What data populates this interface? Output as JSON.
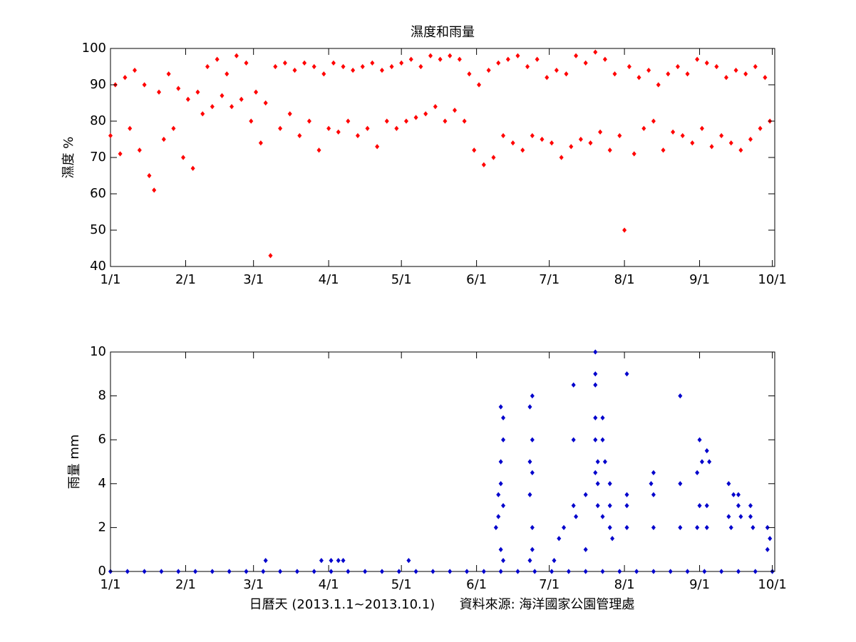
{
  "chart_data": [
    {
      "type": "scatter",
      "title": "濕度和雨量",
      "ylabel": "濕度 %",
      "color": "#ff0000",
      "xlim": [
        0,
        274
      ],
      "ylim": [
        40,
        100
      ],
      "xticks": [
        {
          "value": 0,
          "label": "1/1"
        },
        {
          "value": 31,
          "label": "2/1"
        },
        {
          "value": 59,
          "label": "3/1"
        },
        {
          "value": 90,
          "label": "4/1"
        },
        {
          "value": 120,
          "label": "5/1"
        },
        {
          "value": 151,
          "label": "6/1"
        },
        {
          "value": 181,
          "label": "7/1"
        },
        {
          "value": 212,
          "label": "8/1"
        },
        {
          "value": 243,
          "label": "9/1"
        },
        {
          "value": 273,
          "label": "10/1"
        }
      ],
      "yticks": [
        40,
        50,
        60,
        70,
        80,
        90,
        100
      ],
      "x": [
        0,
        2,
        4,
        6,
        8,
        10,
        12,
        14,
        16,
        18,
        20,
        22,
        24,
        26,
        28,
        30,
        32,
        34,
        36,
        38,
        40,
        42,
        44,
        46,
        48,
        50,
        52,
        54,
        56,
        58,
        60,
        62,
        64,
        66,
        68,
        70,
        72,
        74,
        76,
        78,
        80,
        82,
        84,
        86,
        88,
        90,
        92,
        94,
        96,
        98,
        100,
        102,
        104,
        106,
        108,
        110,
        112,
        114,
        116,
        118,
        120,
        122,
        124,
        126,
        128,
        130,
        132,
        134,
        136,
        138,
        140,
        142,
        144,
        146,
        148,
        150,
        152,
        154,
        156,
        158,
        160,
        162,
        164,
        166,
        168,
        170,
        172,
        174,
        176,
        178,
        180,
        182,
        184,
        186,
        188,
        190,
        192,
        194,
        196,
        198,
        200,
        202,
        204,
        206,
        208,
        210,
        212,
        214,
        216,
        218,
        220,
        222,
        224,
        226,
        228,
        230,
        232,
        234,
        236,
        238,
        240,
        242,
        244,
        246,
        248,
        250,
        252,
        254,
        256,
        258,
        260,
        262,
        264,
        266,
        268,
        270,
        272
      ],
      "values": [
        76,
        90,
        71,
        92,
        78,
        94,
        72,
        90,
        65,
        61,
        88,
        75,
        93,
        78,
        89,
        70,
        86,
        67,
        88,
        82,
        95,
        84,
        97,
        87,
        93,
        84,
        98,
        86,
        96,
        80,
        88,
        74,
        85,
        43,
        95,
        78,
        96,
        82,
        94,
        76,
        96,
        80,
        95,
        72,
        93,
        78,
        96,
        77,
        95,
        80,
        94,
        76,
        95,
        78,
        96,
        73,
        94,
        80,
        95,
        78,
        96,
        80,
        97,
        81,
        95,
        82,
        98,
        84,
        97,
        80,
        98,
        83,
        97,
        80,
        93,
        72,
        90,
        68,
        94,
        70,
        96,
        76,
        97,
        74,
        98,
        72,
        95,
        76,
        97,
        75,
        92,
        74,
        94,
        70,
        93,
        73,
        98,
        75,
        96,
        74,
        99,
        77,
        97,
        72,
        93,
        76,
        50,
        95,
        71,
        92,
        78,
        94,
        80,
        90,
        72,
        93,
        77,
        95,
        76,
        93,
        74,
        97,
        78,
        96,
        73,
        95,
        76,
        92,
        74,
        94,
        72,
        93,
        75,
        95,
        78,
        92,
        80
      ]
    },
    {
      "type": "scatter",
      "ylabel": "雨量 mm",
      "xlabel": "日曆天 (2013.1.1~2013.10.1)      資料來源: 海洋國家公園管理處",
      "color": "#0000cc",
      "xlim": [
        0,
        274
      ],
      "ylim": [
        0,
        10
      ],
      "xticks": [
        {
          "value": 0,
          "label": "1/1"
        },
        {
          "value": 31,
          "label": "2/1"
        },
        {
          "value": 59,
          "label": "3/1"
        },
        {
          "value": 90,
          "label": "4/1"
        },
        {
          "value": 120,
          "label": "5/1"
        },
        {
          "value": 151,
          "label": "6/1"
        },
        {
          "value": 181,
          "label": "7/1"
        },
        {
          "value": 212,
          "label": "8/1"
        },
        {
          "value": 243,
          "label": "9/1"
        },
        {
          "value": 273,
          "label": "10/1"
        }
      ],
      "yticks": [
        0,
        2,
        4,
        6,
        8,
        10
      ],
      "x": [
        0,
        7,
        14,
        21,
        28,
        35,
        42,
        49,
        56,
        63,
        70,
        77,
        84,
        91,
        98,
        105,
        112,
        119,
        126,
        133,
        140,
        147,
        154,
        161,
        168,
        175,
        182,
        189,
        196,
        203,
        210,
        217,
        224,
        231,
        238,
        245,
        252,
        259,
        266,
        273,
        64,
        87,
        91,
        94,
        96,
        123,
        159,
        160,
        161,
        162,
        162,
        161,
        161,
        162,
        160,
        161,
        162,
        174,
        173,
        174,
        173,
        174,
        173,
        174,
        174,
        173,
        183,
        185,
        187,
        191,
        191,
        191,
        192,
        196,
        196,
        200,
        200,
        200,
        200,
        200,
        201,
        200,
        201,
        201,
        203,
        203,
        204,
        203,
        206,
        206,
        206,
        207,
        213,
        213,
        213,
        213,
        224,
        223,
        224,
        224,
        235,
        235,
        235,
        243,
        244,
        242,
        243,
        242,
        246,
        247,
        246,
        246,
        255,
        257,
        255,
        256,
        259,
        259,
        260,
        264,
        264,
        265,
        271,
        272,
        271
      ],
      "values": [
        0,
        0,
        0,
        0,
        0,
        0,
        0,
        0,
        0,
        0,
        0,
        0,
        0,
        0,
        0,
        0,
        0,
        0,
        0,
        0,
        0,
        0,
        0,
        0,
        0,
        0,
        0,
        0,
        0,
        0,
        0,
        0,
        0,
        0,
        0,
        0,
        0,
        0,
        0,
        0,
        0.5,
        0.5,
        0.5,
        0.5,
        0.5,
        0.5,
        2,
        3.5,
        7.5,
        7,
        6,
        5,
        4,
        3,
        2.5,
        1,
        0.5,
        8,
        7.5,
        6,
        5,
        4.5,
        3.5,
        2,
        1,
        0.5,
        0.5,
        1.5,
        2,
        8.5,
        6,
        3,
        2.5,
        3.5,
        1,
        10,
        9,
        8.5,
        7,
        6,
        5,
        4.5,
        4,
        3,
        7,
        6,
        5,
        2.5,
        4,
        3,
        2,
        1.5,
        9,
        3.5,
        3,
        2,
        4.5,
        4,
        3.5,
        2,
        8,
        4,
        2,
        6,
        5,
        4.5,
        3,
        2,
        5.5,
        5,
        3,
        2,
        4,
        3.5,
        2.5,
        2,
        3.5,
        3,
        2.5,
        3,
        2.5,
        2,
        2,
        1.5,
        1
      ]
    }
  ]
}
